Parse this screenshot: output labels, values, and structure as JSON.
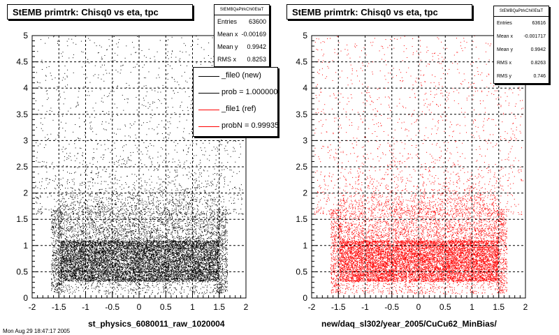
{
  "chart_data": [
    {
      "type": "scatter",
      "title": "StEMB primtrk: Chisq0 vs eta, tpc",
      "xlabel": "st_physics_6080011_raw_1020004",
      "ylabel": "",
      "xlim": [
        -2,
        2
      ],
      "ylim": [
        0,
        5
      ],
      "x_ticks": [
        "-2",
        "-1.5",
        "-1",
        "-0.5",
        "0",
        "0.5",
        "1",
        "1.5",
        "2"
      ],
      "y_ticks": [
        "0",
        "0.5",
        "1",
        "1.5",
        "2",
        "2.5",
        "3",
        "3.5",
        "4",
        "4.5",
        "5"
      ],
      "grid": true,
      "marker_color": "#000000",
      "series": [
        {
          "name": "_file0 (new)",
          "color": "#000000",
          "density_note": "dense band x -1.5..1.5, y 0.3..1.1; sparse up to y 5"
        }
      ],
      "stats": {
        "name": "StEMBQaPtrkChi0EtaT",
        "rows": [
          {
            "key": "Entries",
            "value": "63600"
          },
          {
            "key": "Mean x",
            "value": "-0.00169"
          },
          {
            "key": "Mean y",
            "value": "0.9942"
          },
          {
            "key": "RMS x",
            "value": "0.8253"
          }
        ]
      },
      "legend": {
        "placement": "top-right",
        "entries": [
          {
            "label": "_file0 (new)",
            "color": "#000000"
          },
          {
            "label": "prob = 1.000000",
            "color": "#000000"
          },
          {
            "label": "_file1 (ref)",
            "color": "#ff0000"
          },
          {
            "label": "probN = 0.99935",
            "color": "#ff0000"
          }
        ]
      }
    },
    {
      "type": "scatter",
      "title": "StEMB primtrk: Chisq0 vs eta, tpc",
      "xlabel": "new/daq_sl302/year_2005/CuCu62_MinBias/",
      "ylabel": "",
      "xlim": [
        -2,
        2
      ],
      "ylim": [
        0,
        5
      ],
      "x_ticks": [
        "-2",
        "-1.5",
        "-1",
        "-0.5",
        "0",
        "0.5",
        "1",
        "1.5",
        "2"
      ],
      "y_ticks": [
        "0",
        "0.5",
        "1",
        "1.5",
        "2",
        "2.5",
        "3",
        "3.5",
        "4",
        "4.5",
        "5"
      ],
      "grid": true,
      "marker_color": "#ff0000",
      "series": [
        {
          "name": "_file1 (ref)",
          "color": "#ff0000",
          "density_note": "dense band x -1.5..1.5, y 0.3..1.1; sparse up to y 5"
        }
      ],
      "stats": {
        "name": "StEMBQaPtrkChi0EtaT",
        "rows": [
          {
            "key": "Entries",
            "value": "63616"
          },
          {
            "key": "Mean x",
            "value": "-0.001717"
          },
          {
            "key": "Mean y",
            "value": "0.9942"
          },
          {
            "key": "RMS x",
            "value": "0.8263"
          },
          {
            "key": "RMS y",
            "value": "0.746"
          }
        ]
      }
    }
  ],
  "footer_text": "Mon Aug 29 18:47:17 2005"
}
